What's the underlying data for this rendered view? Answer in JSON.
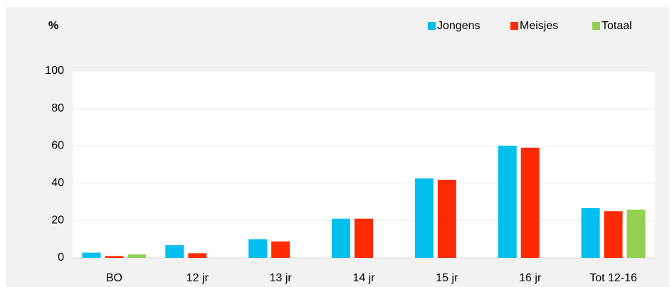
{
  "chart_data": {
    "type": "bar",
    "y_label": "%",
    "categories": [
      "BO",
      "12 jr",
      "13 jr",
      "14 jr",
      "15 jr",
      "16 jr",
      "Tot 12-16"
    ],
    "series": [
      {
        "name": "Jongens",
        "color": "#00bfef",
        "values": [
          2.8,
          6.8,
          10,
          21,
          42.5,
          60,
          26.6
        ]
      },
      {
        "name": "Meisjes",
        "color": "#ff2a00",
        "values": [
          1,
          2.5,
          8.8,
          21,
          41.8,
          59,
          25
        ]
      },
      {
        "name": "Totaal",
        "color": "#92d050",
        "values": [
          1.8,
          null,
          null,
          null,
          null,
          null,
          25.8
        ]
      }
    ],
    "ylim": [
      0,
      100
    ],
    "yticks": [
      0,
      20,
      40,
      60,
      80,
      100
    ],
    "grid": true,
    "legend": "top-right"
  }
}
